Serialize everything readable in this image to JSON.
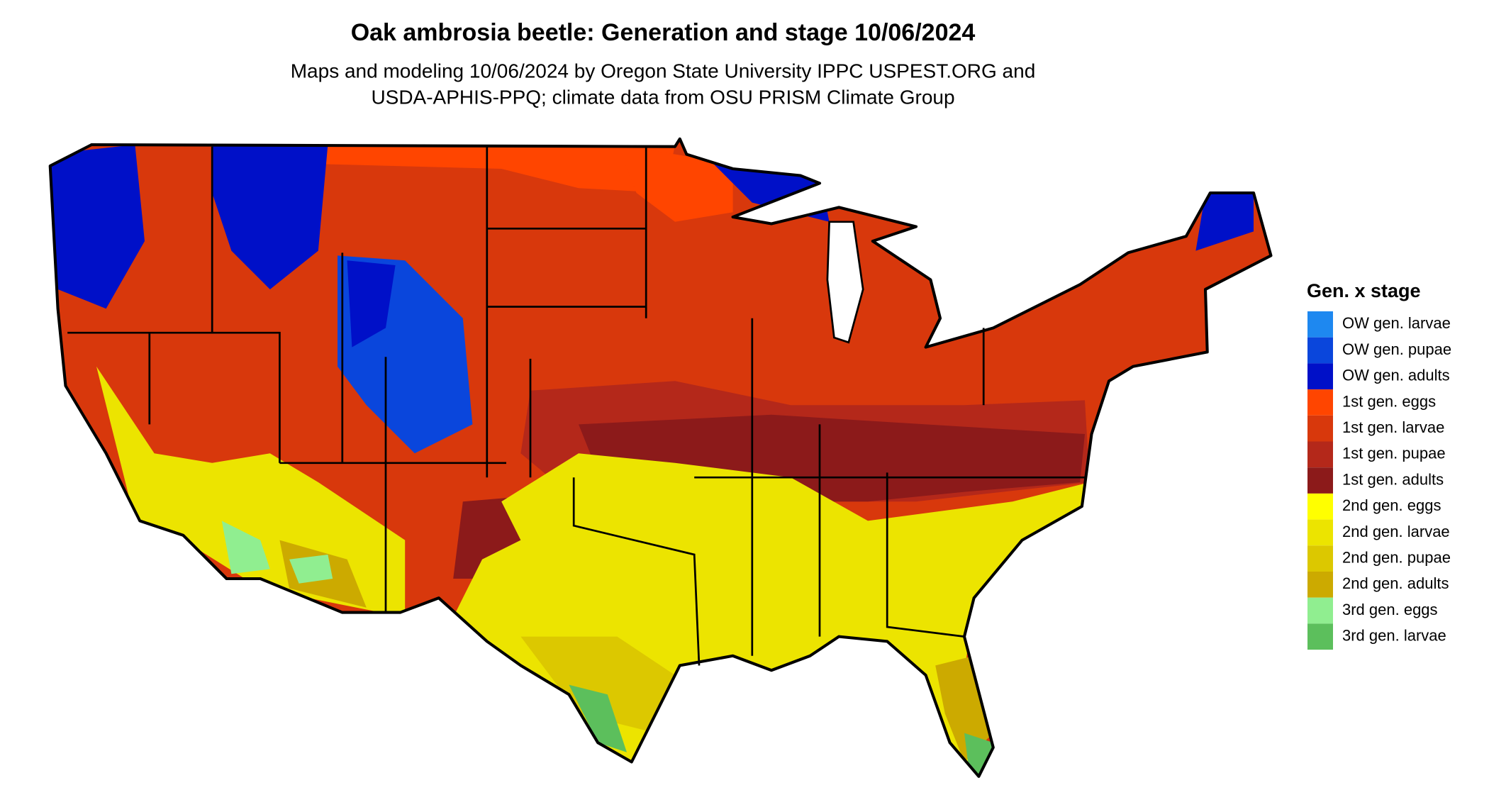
{
  "title": "Oak ambrosia beetle: Generation and stage 10/06/2024",
  "subtitle": [
    "Maps and modeling 10/06/2024 by Oregon State University IPPC USPEST.ORG and",
    "USDA-APHIS-PPQ; climate data from OSU PRISM Climate Group"
  ],
  "legend": {
    "title": "Gen. x stage",
    "items": [
      {
        "label": "OW gen. larvae",
        "color": "#1e88f0"
      },
      {
        "label": "OW gen. pupae",
        "color": "#0a46dc"
      },
      {
        "label": "OW gen. adults",
        "color": "#0010c8"
      },
      {
        "label": "1st gen. eggs",
        "color": "#ff4500"
      },
      {
        "label": "1st gen. larvae",
        "color": "#d8380c"
      },
      {
        "label": "1st gen. pupae",
        "color": "#b4281a"
      },
      {
        "label": "1st gen. adults",
        "color": "#8c1a1a"
      },
      {
        "label": "2nd gen. eggs",
        "color": "#ffff00"
      },
      {
        "label": "2nd gen. larvae",
        "color": "#ece400"
      },
      {
        "label": "2nd gen. pupae",
        "color": "#dcc800"
      },
      {
        "label": "2nd gen. adults",
        "color": "#ccaa00"
      },
      {
        "label": "3rd gen. eggs",
        "color": "#90ee90"
      },
      {
        "label": "3rd gen. larvae",
        "color": "#5cbf5c"
      }
    ]
  }
}
